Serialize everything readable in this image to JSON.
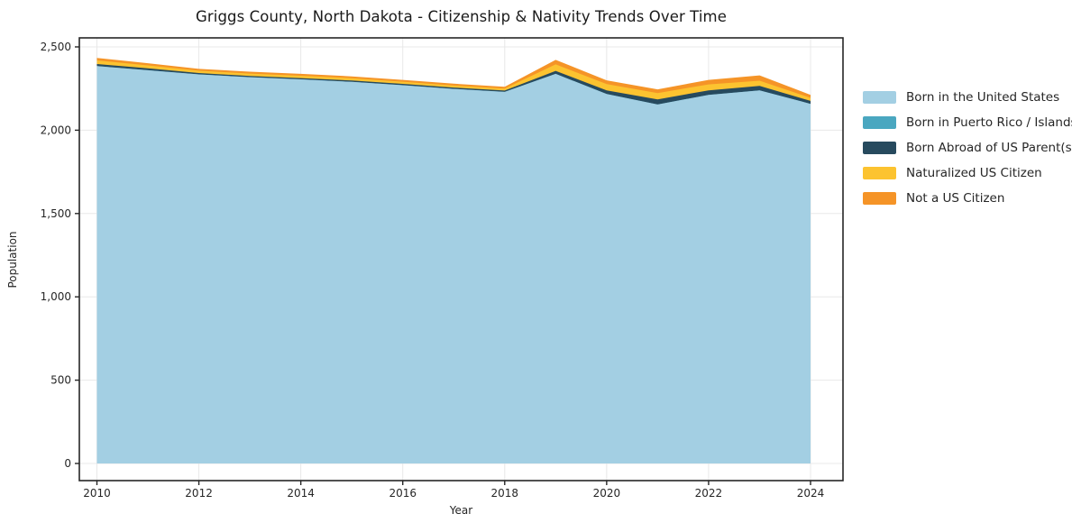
{
  "chart": {
    "title": "Griggs County, North Dakota - Citizenship & Nativity Trends Over Time",
    "xlabel": "Year",
    "ylabel": "Population"
  },
  "chart_data": {
    "type": "area",
    "stacked": true,
    "title": "Griggs County, North Dakota - Citizenship & Nativity Trends Over Time",
    "xlabel": "Year",
    "ylabel": "Population",
    "x": [
      2010,
      2011,
      2012,
      2013,
      2014,
      2015,
      2016,
      2017,
      2018,
      2019,
      2020,
      2021,
      2022,
      2023,
      2024
    ],
    "series": [
      {
        "name": "Born in the United States",
        "color": "#a3cfe3",
        "values": [
          2385,
          2360,
          2335,
          2318,
          2305,
          2290,
          2270,
          2248,
          2230,
          2338,
          2217,
          2154,
          2212,
          2239,
          2158
        ]
      },
      {
        "name": "Born in Puerto Rico / Islands",
        "color": "#4aa7c0",
        "values": [
          0,
          0,
          0,
          0,
          0,
          0,
          0,
          0,
          0,
          0,
          0,
          0,
          0,
          0,
          0
        ]
      },
      {
        "name": "Born Abroad of US Parent(s)",
        "color": "#274a5e",
        "values": [
          12,
          11,
          8,
          8,
          8,
          8,
          8,
          8,
          8,
          18,
          22,
          31,
          27,
          27,
          18
        ]
      },
      {
        "name": "Naturalized US Citizen",
        "color": "#fcc330",
        "values": [
          22,
          18,
          14,
          14,
          14,
          14,
          13,
          12,
          12,
          39,
          38,
          38,
          36,
          31,
          18
        ]
      },
      {
        "name": "Not a US Citizen",
        "color": "#f59427",
        "values": [
          15,
          13,
          11,
          11,
          11,
          11,
          11,
          11,
          11,
          27,
          22,
          22,
          27,
          32,
          18
        ]
      }
    ],
    "xticks": [
      2010,
      2012,
      2014,
      2016,
      2018,
      2020,
      2022,
      2024
    ],
    "yticks": [
      0,
      500,
      1000,
      1500,
      2000,
      2500
    ],
    "ytick_labels": [
      "0",
      "500",
      "1,000",
      "1,500",
      "2,000",
      "2,500"
    ],
    "xlim": [
      2009.65,
      2024.65
    ],
    "ylim": [
      0,
      2553
    ],
    "grid": true,
    "grid_color": "#e8e8e8",
    "spine_color": "#262626",
    "legend_position": "right"
  }
}
